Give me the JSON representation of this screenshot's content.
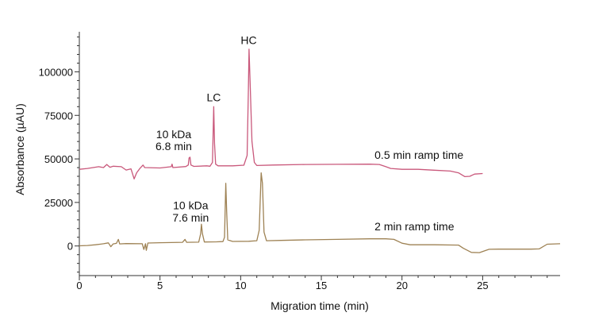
{
  "chart_data": {
    "type": "line",
    "xlabel": "Migration time (min)",
    "ylabel": "Absorbance (µAU)",
    "xlim": [
      0,
      29.8
    ],
    "ylim": [
      -17000,
      123000
    ],
    "x_ticks": [
      0,
      5,
      10,
      15,
      20,
      25
    ],
    "y_ticks": [
      0,
      25000,
      50000,
      75000,
      100000
    ],
    "x_tick_labels": [
      "0",
      "5",
      "10",
      "15",
      "20",
      "25"
    ],
    "y_tick_labels": [
      "0",
      "25000",
      "50000",
      "75000",
      "100000"
    ],
    "grid": false,
    "colors": {
      "series_1": "#c9587b",
      "series_2": "#9e8254",
      "axis": "#333333"
    },
    "series": [
      {
        "name": "0.5 min ramp time",
        "points": [
          [
            0,
            44000
          ],
          [
            0.5,
            44500
          ],
          [
            1.2,
            45500
          ],
          [
            1.5,
            45000
          ],
          [
            1.7,
            46800
          ],
          [
            1.9,
            45200
          ],
          [
            2.1,
            45800
          ],
          [
            2.6,
            45500
          ],
          [
            2.9,
            43600
          ],
          [
            3.2,
            44300
          ],
          [
            3.4,
            38500
          ],
          [
            3.55,
            42000
          ],
          [
            3.75,
            44500
          ],
          [
            3.95,
            46500
          ],
          [
            4.05,
            45000
          ],
          [
            5.0,
            44800
          ],
          [
            5.7,
            45500
          ],
          [
            5.75,
            47000
          ],
          [
            5.8,
            45000
          ],
          [
            6.6,
            45600
          ],
          [
            6.75,
            46500
          ],
          [
            6.8,
            50500
          ],
          [
            6.86,
            51000
          ],
          [
            6.92,
            46500
          ],
          [
            7.1,
            45700
          ],
          [
            7.9,
            46000
          ],
          [
            8.1,
            45800
          ],
          [
            8.25,
            48000
          ],
          [
            8.33,
            80000
          ],
          [
            8.38,
            59000
          ],
          [
            8.45,
            47000
          ],
          [
            8.6,
            46000
          ],
          [
            9.5,
            46000
          ],
          [
            10.2,
            46400
          ],
          [
            10.4,
            52000
          ],
          [
            10.48,
            90000
          ],
          [
            10.52,
            113000
          ],
          [
            10.58,
            95000
          ],
          [
            10.7,
            60000
          ],
          [
            10.85,
            48000
          ],
          [
            11.0,
            46200
          ],
          [
            12.0,
            46500
          ],
          [
            14.0,
            46800
          ],
          [
            16.0,
            46900
          ],
          [
            18.0,
            47000
          ],
          [
            18.6,
            46800
          ],
          [
            19.0,
            45500
          ],
          [
            19.3,
            44500
          ],
          [
            20.0,
            44000
          ],
          [
            21.0,
            44000
          ],
          [
            22.0,
            43500
          ],
          [
            23.0,
            43000
          ],
          [
            23.5,
            42000
          ],
          [
            23.9,
            39800
          ],
          [
            24.2,
            40000
          ],
          [
            24.5,
            41300
          ],
          [
            25.0,
            41600
          ]
        ]
      },
      {
        "name": "2 min ramp time",
        "points": [
          [
            0,
            100
          ],
          [
            0.5,
            300
          ],
          [
            1.0,
            700
          ],
          [
            1.5,
            1300
          ],
          [
            1.8,
            1800
          ],
          [
            1.95,
            -400
          ],
          [
            2.1,
            1200
          ],
          [
            2.3,
            1500
          ],
          [
            2.42,
            3800
          ],
          [
            2.5,
            1200
          ],
          [
            2.9,
            1400
          ],
          [
            3.9,
            1300
          ],
          [
            4.0,
            -2000
          ],
          [
            4.1,
            1300
          ],
          [
            4.15,
            -2500
          ],
          [
            4.25,
            1700
          ],
          [
            5.0,
            1900
          ],
          [
            6.4,
            2100
          ],
          [
            6.55,
            3800
          ],
          [
            6.65,
            2100
          ],
          [
            7.4,
            2200
          ],
          [
            7.52,
            7000
          ],
          [
            7.57,
            12500
          ],
          [
            7.63,
            7000
          ],
          [
            7.75,
            2300
          ],
          [
            8.5,
            2400
          ],
          [
            8.9,
            2500
          ],
          [
            9.0,
            5000
          ],
          [
            9.08,
            36000
          ],
          [
            9.13,
            20000
          ],
          [
            9.2,
            3500
          ],
          [
            9.5,
            2600
          ],
          [
            10.5,
            2700
          ],
          [
            11.0,
            3000
          ],
          [
            11.15,
            9000
          ],
          [
            11.27,
            42000
          ],
          [
            11.35,
            36000
          ],
          [
            11.45,
            8000
          ],
          [
            11.6,
            3000
          ],
          [
            12.5,
            3200
          ],
          [
            14.0,
            3500
          ],
          [
            16.0,
            3800
          ],
          [
            18.0,
            4100
          ],
          [
            19.0,
            4100
          ],
          [
            19.5,
            3800
          ],
          [
            20.0,
            1600
          ],
          [
            20.5,
            700
          ],
          [
            22.0,
            700
          ],
          [
            23.5,
            500
          ],
          [
            23.8,
            -1300
          ],
          [
            24.3,
            -3700
          ],
          [
            24.8,
            -3800
          ],
          [
            25.2,
            -2500
          ],
          [
            25.4,
            -1900
          ],
          [
            26.0,
            -1800
          ],
          [
            28.0,
            -1800
          ],
          [
            28.5,
            -1700
          ],
          [
            29.0,
            1000
          ],
          [
            29.8,
            1300
          ]
        ]
      }
    ],
    "annotations": [
      {
        "text": "HC",
        "x": 10.5,
        "y": 116000,
        "align": "middle"
      },
      {
        "text": "LC",
        "x": 8.33,
        "y": 83000,
        "align": "middle"
      },
      {
        "text": "10 kDa",
        "x": 5.85,
        "y": 62000,
        "align": "middle"
      },
      {
        "text": "6.8 min",
        "x": 5.85,
        "y": 55000,
        "align": "middle"
      },
      {
        "text": "0.5 min ramp time",
        "x": 18.3,
        "y": 50000,
        "align": "start"
      },
      {
        "text": "10 kDa",
        "x": 6.9,
        "y": 21000,
        "align": "middle"
      },
      {
        "text": "7.6 min",
        "x": 6.9,
        "y": 14000,
        "align": "middle"
      },
      {
        "text": "2 min ramp time",
        "x": 18.3,
        "y": 9000,
        "align": "start"
      }
    ]
  }
}
